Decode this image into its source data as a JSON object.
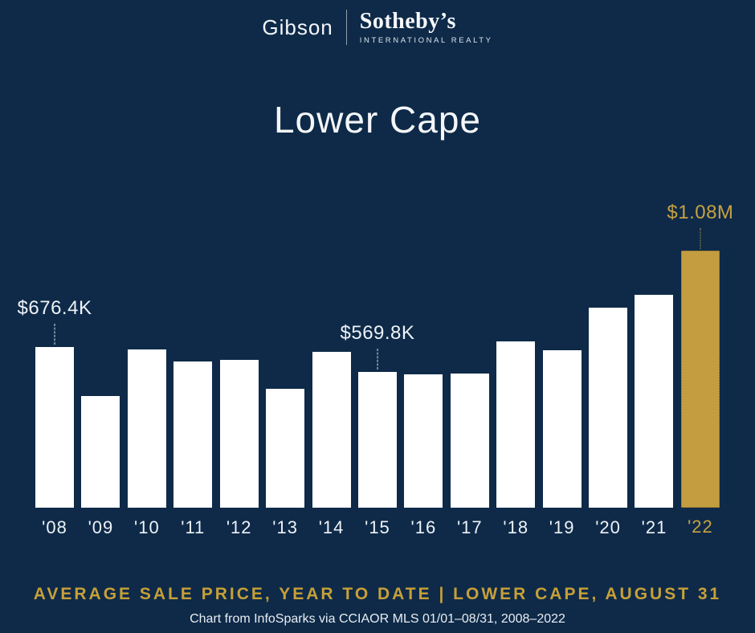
{
  "colors": {
    "background": "#0e2a48",
    "bar_default": "#ffffff",
    "bar_highlight": "#c49d40",
    "gold_text": "#c7a144",
    "white_text": "#eef2f6"
  },
  "logo": {
    "primary": "Gibson",
    "secondary": "Sotheby’s",
    "tertiary": "INTERNATIONAL REALTY"
  },
  "title": "Lower Cape",
  "chart_data": {
    "type": "bar",
    "title": "Lower Cape",
    "categories": [
      "'08",
      "'09",
      "'10",
      "'11",
      "'12",
      "'13",
      "'14",
      "'15",
      "'16",
      "'17",
      "'18",
      "'19",
      "'20",
      "'21",
      "'22"
    ],
    "values_thousands": [
      676.4,
      470,
      666,
      615,
      622,
      500,
      656,
      569.8,
      561,
      565,
      697,
      660,
      842,
      896,
      1080
    ],
    "unit": "USD thousands",
    "ylim": [
      0,
      1150
    ],
    "grid": false,
    "highlight_index": 14,
    "annotations": [
      {
        "index": 0,
        "label": "$676.4K"
      },
      {
        "index": 7,
        "label": "$569.8K"
      },
      {
        "index": 14,
        "label": "$1.08M"
      }
    ]
  },
  "footer": {
    "heading": "AVERAGE SALE PRICE, YEAR TO DATE | LOWER CAPE, AUGUST 31",
    "source": "Chart from InfoSparks via CCIAOR MLS 01/01–08/31, 2008–2022"
  }
}
